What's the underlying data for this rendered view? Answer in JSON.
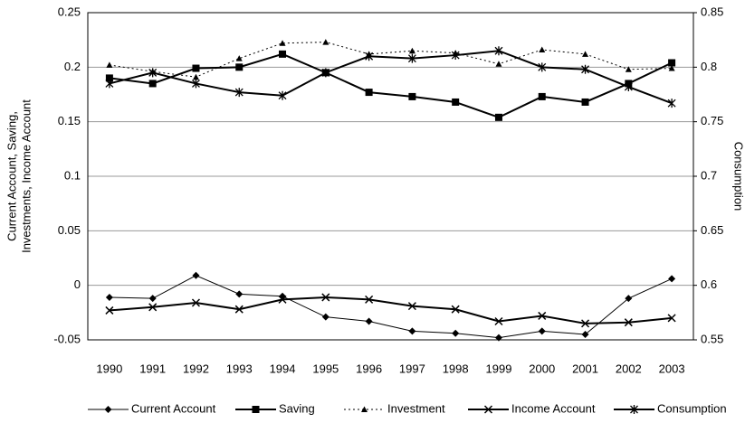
{
  "chart_data": {
    "type": "line",
    "ylabel": [
      "Current Account, Saving,",
      "Investments, Income Account"
    ],
    "y2label": "Consumption",
    "categories": [
      "1990",
      "1991",
      "1992",
      "1993",
      "1994",
      "1995",
      "1996",
      "1997",
      "1998",
      "1999",
      "2000",
      "2001",
      "2002",
      "2003"
    ],
    "ylim": [
      -0.05,
      0.25
    ],
    "yticks": [
      0.25,
      0.2,
      0.15,
      0.1,
      0.05,
      0,
      -0.05
    ],
    "y2lim": [
      0.55,
      0.85
    ],
    "y2ticks": [
      0.85,
      0.8,
      0.75,
      0.7,
      0.65,
      0.6,
      0.55
    ],
    "grid": true,
    "legend": "bottom",
    "series": [
      {
        "name": "Current Account",
        "color": "#000000",
        "marker": "diamond",
        "line_width": 1,
        "dash": "solid",
        "values": [
          -0.011,
          -0.012,
          0.009,
          -0.008,
          -0.01,
          -0.029,
          -0.033,
          -0.042,
          -0.044,
          -0.048,
          -0.042,
          -0.045,
          -0.012,
          0.006
        ]
      },
      {
        "name": "Saving",
        "color": "#000000",
        "marker": "square",
        "line_width": 2,
        "dash": "solid",
        "values": [
          0.19,
          0.185,
          0.199,
          0.2,
          0.212,
          0.195,
          0.177,
          0.173,
          0.168,
          0.154,
          0.173,
          0.168,
          0.185,
          0.204
        ]
      },
      {
        "name": "Investment",
        "color": "#000000",
        "marker": "triangle",
        "line_width": 1,
        "dash": "dotted",
        "values": [
          0.202,
          0.196,
          0.191,
          0.208,
          0.222,
          0.223,
          0.212,
          0.215,
          0.213,
          0.203,
          0.216,
          0.212,
          0.198,
          0.199
        ]
      },
      {
        "name": "Income Account",
        "color": "#000000",
        "marker": "x",
        "line_width": 2,
        "dash": "solid",
        "values": [
          -0.023,
          -0.02,
          -0.016,
          -0.022,
          -0.013,
          -0.011,
          -0.013,
          -0.019,
          -0.022,
          -0.033,
          -0.028,
          -0.035,
          -0.034,
          -0.03
        ]
      },
      {
        "name": "Consumption",
        "color": "#000000",
        "marker": "asterisk",
        "line_width": 2,
        "dash": "solid",
        "axis": "y2",
        "values": [
          0.785,
          0.795,
          0.785,
          0.777,
          0.774,
          0.795,
          0.81,
          0.808,
          0.811,
          0.815,
          0.8,
          0.798,
          0.782,
          0.767
        ]
      }
    ]
  }
}
